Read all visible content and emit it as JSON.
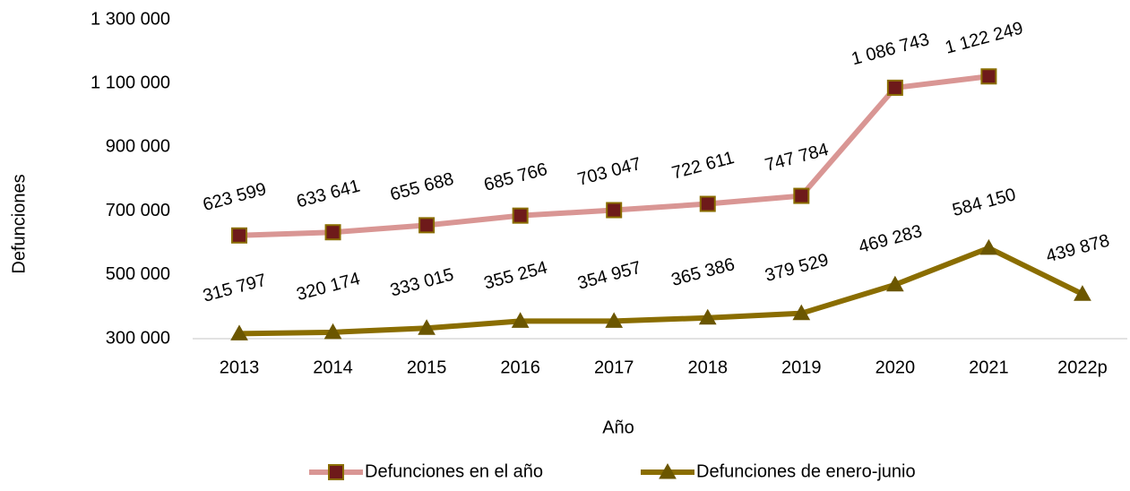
{
  "chart_data": {
    "type": "line",
    "x_label": "Año",
    "y_label": "Defunciones",
    "categories": [
      "2013",
      "2014",
      "2015",
      "2016",
      "2017",
      "2018",
      "2019",
      "2020",
      "2021",
      "2022p"
    ],
    "series": [
      {
        "name": "Defunciones en el año",
        "color": "#d99694",
        "marker": "square",
        "marker_color": "#6e1a1a",
        "marker_edge": "#8a6d00",
        "values": [
          623599,
          633641,
          655688,
          685766,
          703047,
          722611,
          747784,
          1086743,
          1122249,
          null
        ],
        "value_labels": [
          "623 599",
          "633 641",
          "655 688",
          "685 766",
          "703 047",
          "722 611",
          "747 784",
          "1 086 743",
          "1 122 249",
          null
        ]
      },
      {
        "name": "Defunciones de enero-junio",
        "color": "#8a6d00",
        "marker": "triangle",
        "marker_color": "#6b5600",
        "marker_edge": "#6b5600",
        "values": [
          315797,
          320174,
          333015,
          355254,
          354957,
          365386,
          379529,
          469283,
          584150,
          439878
        ],
        "value_labels": [
          "315 797",
          "320 174",
          "333 015",
          "355 254",
          "354 957",
          "365 386",
          "379 529",
          "469 283",
          "584 150",
          "439 878"
        ]
      }
    ],
    "ylim": [
      300000,
      1300000
    ],
    "yticks": [
      {
        "value": 300000,
        "label": "300 000"
      },
      {
        "value": 500000,
        "label": "500 000"
      },
      {
        "value": 700000,
        "label": "700 000"
      },
      {
        "value": 900000,
        "label": "900 000"
      },
      {
        "value": 1100000,
        "label": "1 100 000"
      },
      {
        "value": 1300000,
        "label": "1 300 000"
      }
    ],
    "legend": "bottom"
  }
}
